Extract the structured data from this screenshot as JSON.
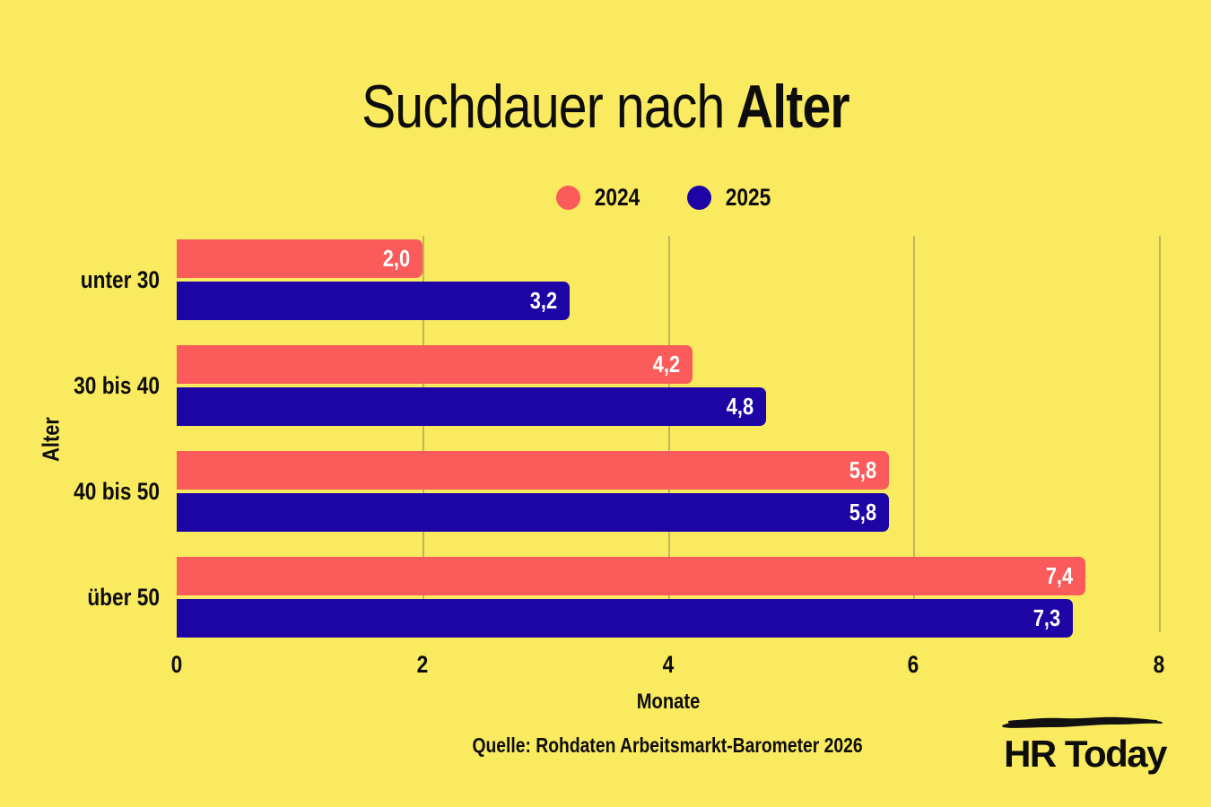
{
  "title": {
    "regular": "Suchdauer nach",
    "bold": "Alter"
  },
  "legend": [
    {
      "label": "2024",
      "color": "#FB5B5B"
    },
    {
      "label": "2025",
      "color": "#1D05A5"
    }
  ],
  "chart_data": {
    "type": "bar",
    "orientation": "horizontal",
    "title": "Suchdauer nach Alter",
    "categories": [
      "unter 30",
      "30 bis 40",
      "40 bis 50",
      "über 50"
    ],
    "series": [
      {
        "name": "2024",
        "color": "#FB5B5B",
        "values": [
          2.0,
          4.2,
          5.8,
          7.4
        ],
        "labels": [
          "2,0",
          "4,2",
          "5,8",
          "7,4"
        ]
      },
      {
        "name": "2025",
        "color": "#1D05A5",
        "values": [
          3.2,
          4.8,
          5.8,
          7.3
        ],
        "labels": [
          "3,2",
          "4,8",
          "5,8",
          "7,3"
        ]
      }
    ],
    "xlabel": "Monate",
    "ylabel": "Alter",
    "xlim": [
      0,
      8
    ],
    "xticks": [
      0,
      2,
      4,
      6,
      8
    ],
    "grid": true,
    "legend_position": "top"
  },
  "axis": {
    "xlabel": "Monate",
    "ylabel": "Alter"
  },
  "source": "Quelle: Rohdaten Arbeitsmarkt-Barometer 2026",
  "logo": {
    "text": "HR Today"
  },
  "colors": {
    "background": "#FAEA5F",
    "bar_2024": "#FB5B5B",
    "bar_2025": "#1D05A5",
    "grid": "#C2B45F",
    "text": "#0D0D0D",
    "value_label": "#FFFFFF"
  }
}
